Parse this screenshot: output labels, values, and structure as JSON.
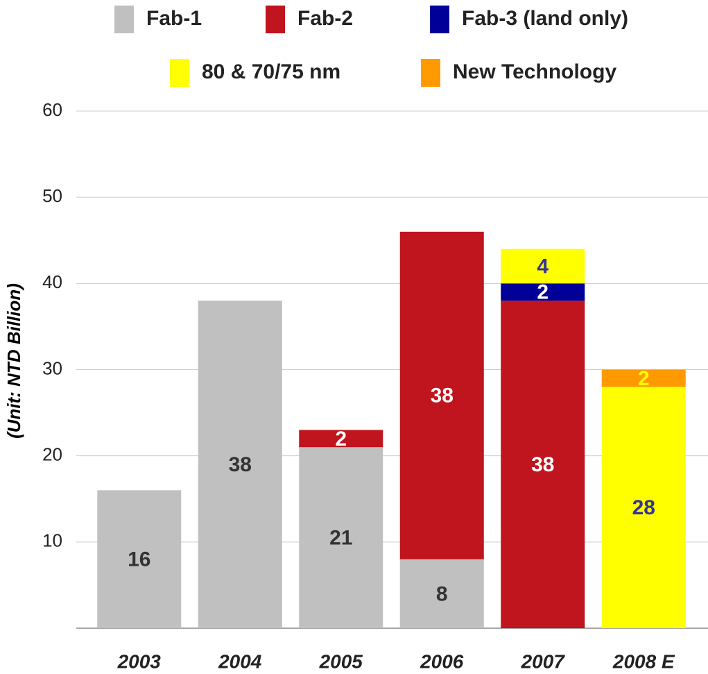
{
  "chart_data": {
    "type": "stacked_bar",
    "y_axis_label": "(Unit: NTD Billion)",
    "categories": [
      "2003",
      "2004",
      "2005",
      "2006",
      "2007",
      "2008 E"
    ],
    "series": [
      {
        "name": "Fab-1",
        "color": "#c0c0c0",
        "label_color": "#333333",
        "values": [
          16,
          38,
          21,
          8,
          null,
          null
        ]
      },
      {
        "name": "Fab-2",
        "color": "#c0141e",
        "label_color": "#ffffff",
        "values": [
          null,
          null,
          2,
          38,
          38,
          null
        ]
      },
      {
        "name": "Fab-3 (land only)",
        "color": "#000099",
        "label_color": "#ffffff",
        "values": [
          null,
          null,
          null,
          null,
          2,
          null
        ]
      },
      {
        "name": "80 & 70/75 nm",
        "color": "#ffff00",
        "label_color": "#333399",
        "values": [
          null,
          null,
          null,
          null,
          4,
          28
        ]
      },
      {
        "name": "New Technology",
        "color": "#ff9900",
        "label_color": "#ffff00",
        "values": [
          null,
          null,
          null,
          null,
          null,
          2
        ]
      }
    ],
    "ylim": [
      0,
      60
    ],
    "yticks": [
      10,
      20,
      30,
      40,
      50,
      60
    ],
    "grid": true
  }
}
